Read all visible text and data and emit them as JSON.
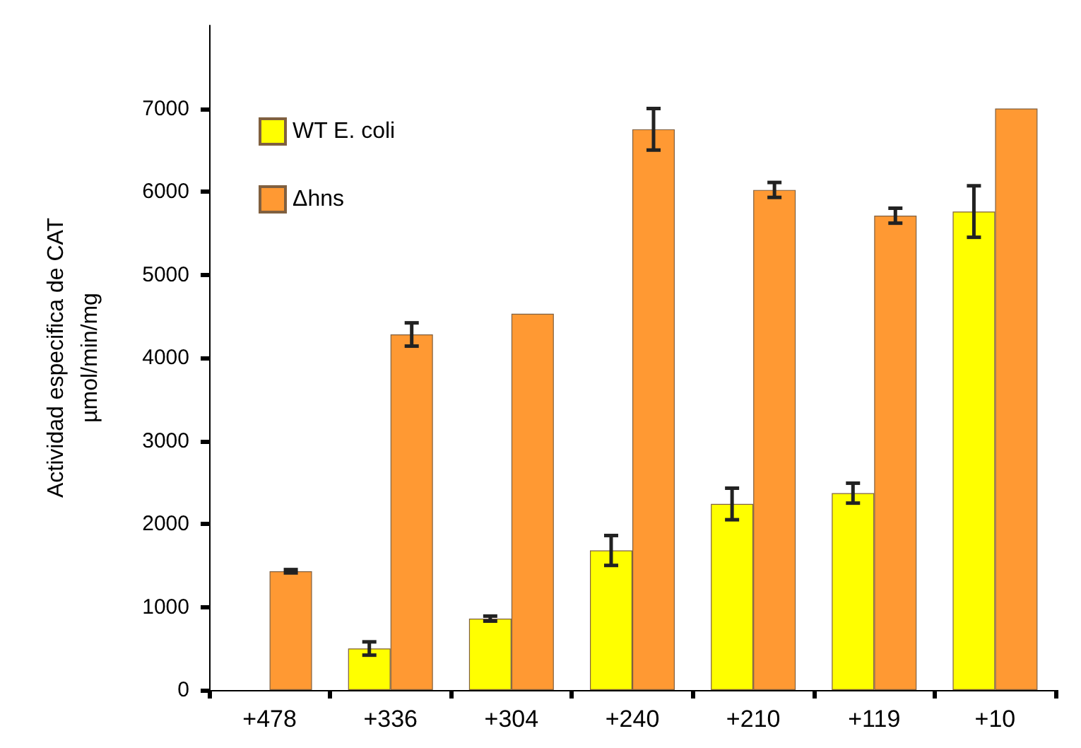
{
  "chart_data": {
    "type": "bar",
    "ylabel": "Actividad especifica de CAT\nµmol/min/mg",
    "categories": [
      "+478",
      "+336",
      "+304",
      "+240",
      "+210",
      "+119",
      "+10"
    ],
    "series": [
      {
        "name": "WT E. coli",
        "color": "#ffff00",
        "values": [
          null,
          500,
          860,
          1680,
          2240,
          2370,
          5760
        ],
        "errors": [
          null,
          80,
          30,
          180,
          190,
          120,
          310
        ]
      },
      {
        "name": "Δhns",
        "color": "#ff9933",
        "values": [
          1430,
          4280,
          4530,
          6750,
          6020,
          5710,
          7000
        ],
        "errors": [
          20,
          140,
          null,
          250,
          90,
          90,
          null
        ]
      }
    ],
    "ylim": [
      0,
      8000
    ],
    "yticks": [
      0,
      1000,
      2000,
      3000,
      4000,
      5000,
      6000,
      7000
    ],
    "grid": false,
    "legend": "top left"
  }
}
